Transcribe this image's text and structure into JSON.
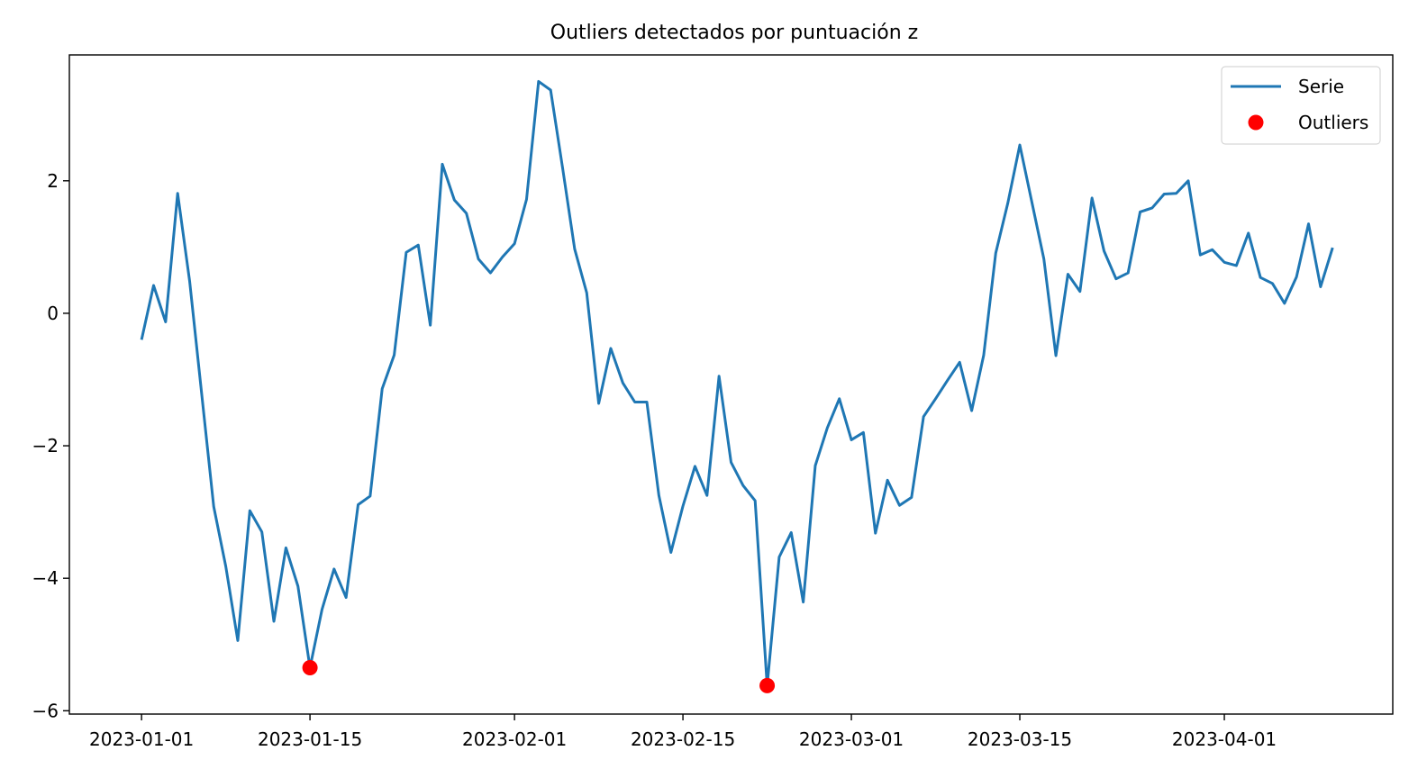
{
  "chart_data": {
    "type": "line",
    "title": "Outliers detectados por puntuación z",
    "xlabel": "",
    "ylabel": "",
    "x_start": "2023-01-01",
    "x_end": "2023-04-10",
    "xlim": [
      "2022-12-26",
      "2023-04-15"
    ],
    "ylim": [
      -6.05,
      3.9
    ],
    "x_ticks": [
      "2023-01-01",
      "2023-01-15",
      "2023-02-01",
      "2023-02-15",
      "2023-03-01",
      "2023-03-15",
      "2023-04-01"
    ],
    "y_ticks": [
      -6,
      -4,
      -2,
      0,
      2
    ],
    "y_tick_labels": [
      "−6",
      "−4",
      "−2",
      "0",
      "2"
    ],
    "grid": false,
    "legend_position": "top-right",
    "series": [
      {
        "name": "Serie",
        "type": "line",
        "color": "#1f77b4",
        "values": [
          -0.4,
          0.42,
          -0.13,
          1.81,
          0.48,
          -1.22,
          -2.92,
          -3.82,
          -4.94,
          -2.98,
          -3.3,
          -4.65,
          -3.54,
          -4.12,
          -5.35,
          -4.47,
          -3.86,
          -4.29,
          -2.89,
          -2.76,
          -1.14,
          -0.63,
          0.92,
          1.03,
          -0.18,
          2.25,
          1.71,
          1.51,
          0.82,
          0.61,
          0.85,
          1.05,
          1.72,
          3.5,
          3.37,
          2.19,
          0.97,
          0.31,
          -1.36,
          -0.53,
          -1.05,
          -1.34,
          -1.34,
          -2.75,
          -3.61,
          -2.91,
          -2.31,
          -2.75,
          -0.95,
          -2.25,
          -2.6,
          -2.83,
          -5.62,
          -3.68,
          -3.31,
          -4.36,
          -2.3,
          -1.73,
          -1.29,
          -1.91,
          -1.8,
          -3.32,
          -2.52,
          -2.9,
          -2.78,
          -1.56,
          -1.29,
          -1.01,
          -0.74,
          -1.47,
          -0.63,
          0.91,
          1.66,
          2.54,
          1.68,
          0.82,
          -0.64,
          0.59,
          0.33,
          1.74,
          0.94,
          0.52,
          0.61,
          1.53,
          1.59,
          1.8,
          1.81,
          2.0,
          0.88,
          0.96,
          0.77,
          0.72,
          1.21,
          0.54,
          0.45,
          0.15,
          0.55,
          1.35,
          0.4,
          0.99
        ]
      },
      {
        "name": "Outliers",
        "type": "scatter",
        "color": "#ff0000",
        "points": [
          {
            "x": "2023-01-15",
            "y": -5.35
          },
          {
            "x": "2023-02-22",
            "y": -5.62
          }
        ]
      }
    ]
  }
}
